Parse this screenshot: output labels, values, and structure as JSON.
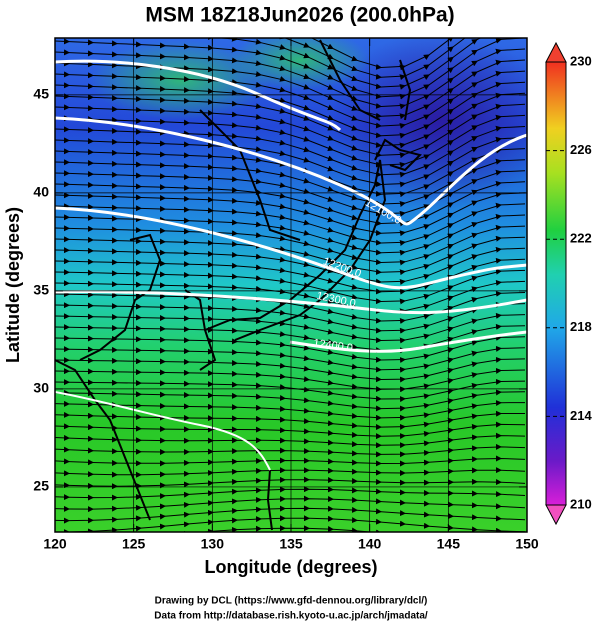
{
  "title": "MSM 18Z18Jun2026 (200.0hPa)",
  "x_axis": {
    "label": "Longitude (degrees)",
    "lim": [
      120,
      150
    ],
    "ticks": [
      120,
      125,
      130,
      135,
      140,
      145,
      150
    ]
  },
  "y_axis": {
    "label": "Latitude  (degrees)",
    "lim": [
      22.7,
      47.9
    ],
    "ticks": [
      25,
      30,
      35,
      40,
      45
    ]
  },
  "colorbar": {
    "lim": [
      210,
      230
    ],
    "ticks": [
      210,
      214,
      218,
      222,
      226,
      230
    ]
  },
  "contour_labels": [
    {
      "value": 12100,
      "label": "12100.0"
    },
    {
      "value": 12200,
      "label": "12200.0"
    },
    {
      "value": 12300,
      "label": "12300.0"
    },
    {
      "value": 12400,
      "label": "12400.0"
    }
  ],
  "credits": [
    "Drawing by DCL (https://www.gfd-dennou.org/library/dcl/)",
    "Data from http://database.rish.kyoto-u.ac.jp/arch/jmadata/"
  ]
}
